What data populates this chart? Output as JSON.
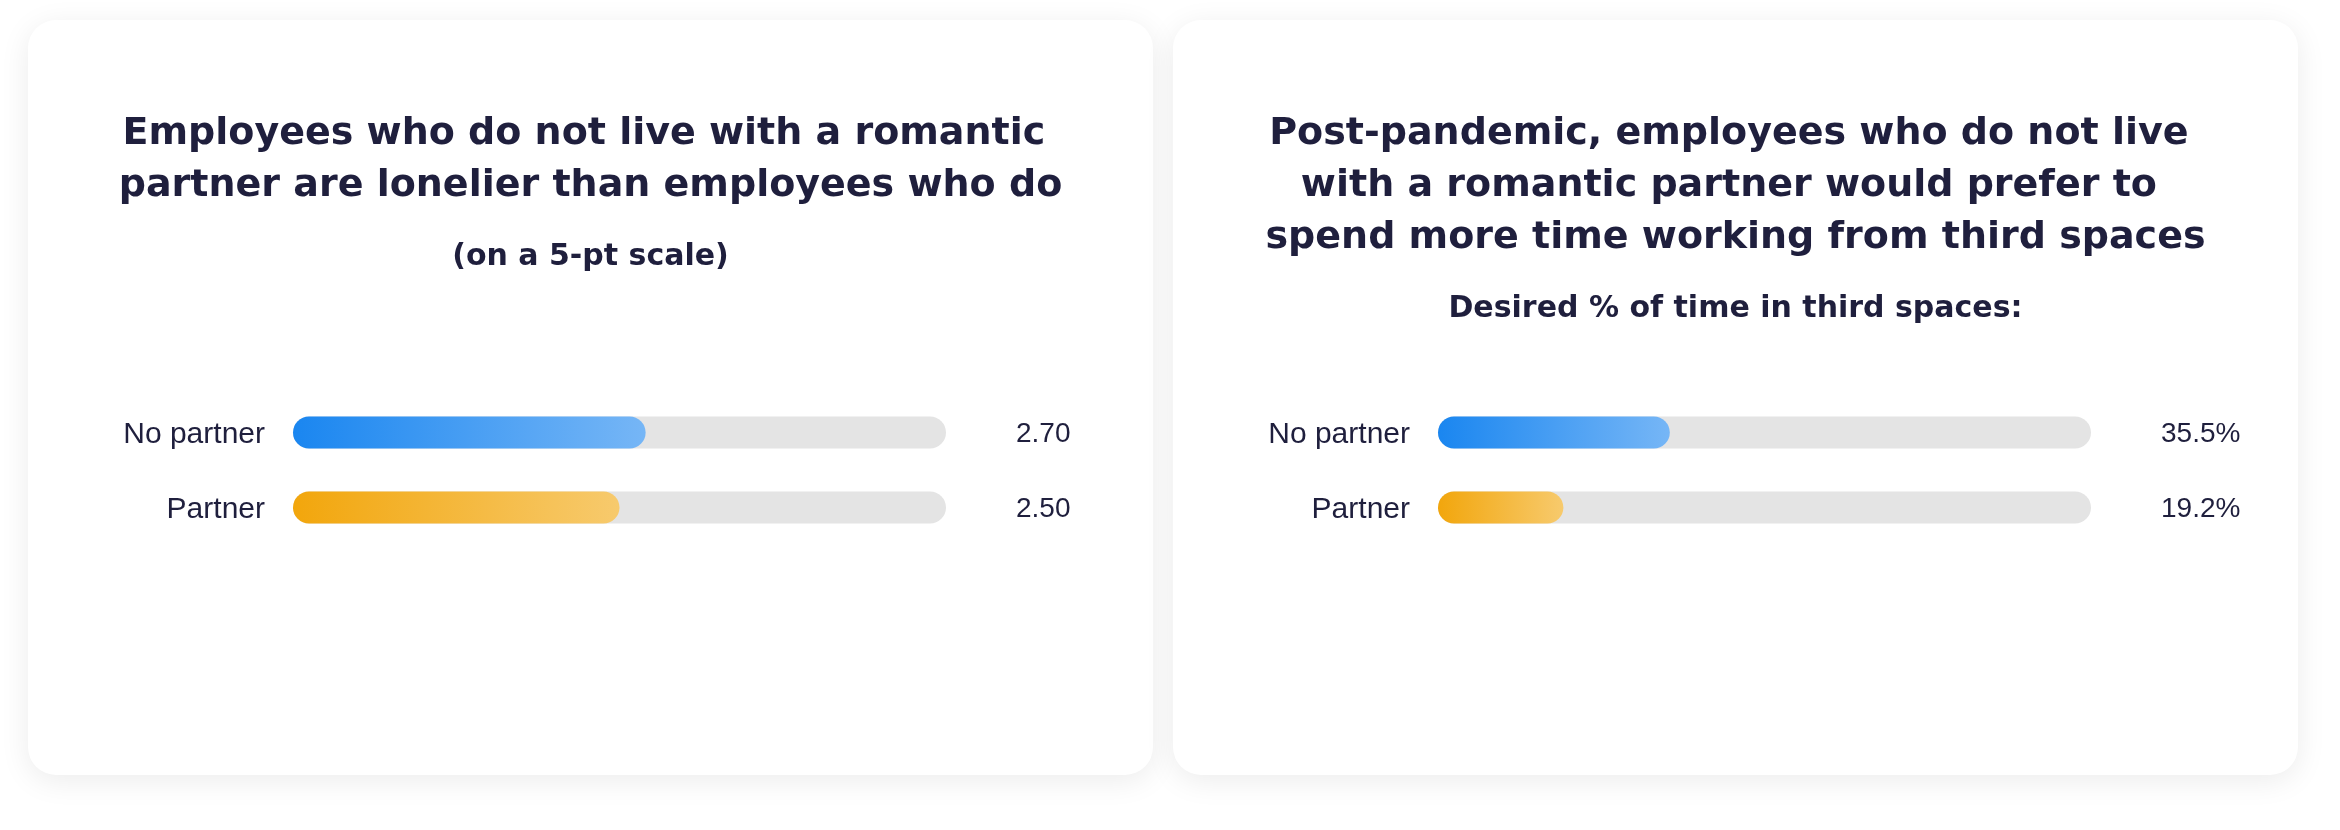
{
  "chart_data": [
    {
      "type": "bar",
      "orientation": "horizontal",
      "title": "Employees who do not live with a romantic partner are lonelier than employees who do",
      "subtitle": "(on a 5-pt scale)",
      "categories": [
        "No partner",
        "Partner"
      ],
      "values": [
        2.7,
        2.5
      ],
      "value_labels": [
        "2.70",
        "2.50"
      ],
      "colors": [
        "#1a86f0",
        "#f2a60c"
      ],
      "xlim": [
        0,
        5
      ]
    },
    {
      "type": "bar",
      "orientation": "horizontal",
      "title": "Post-pandemic, employees who do not live with a romantic partner would prefer to spend more time working from third spaces",
      "subtitle": "Desired % of time in third spaces:",
      "categories": [
        "No partner",
        "Partner"
      ],
      "values": [
        35.5,
        19.2
      ],
      "value_labels": [
        "35.5%",
        "19.2%"
      ],
      "colors": [
        "#1a86f0",
        "#f2a60c"
      ],
      "xlim": [
        0,
        100
      ]
    }
  ]
}
